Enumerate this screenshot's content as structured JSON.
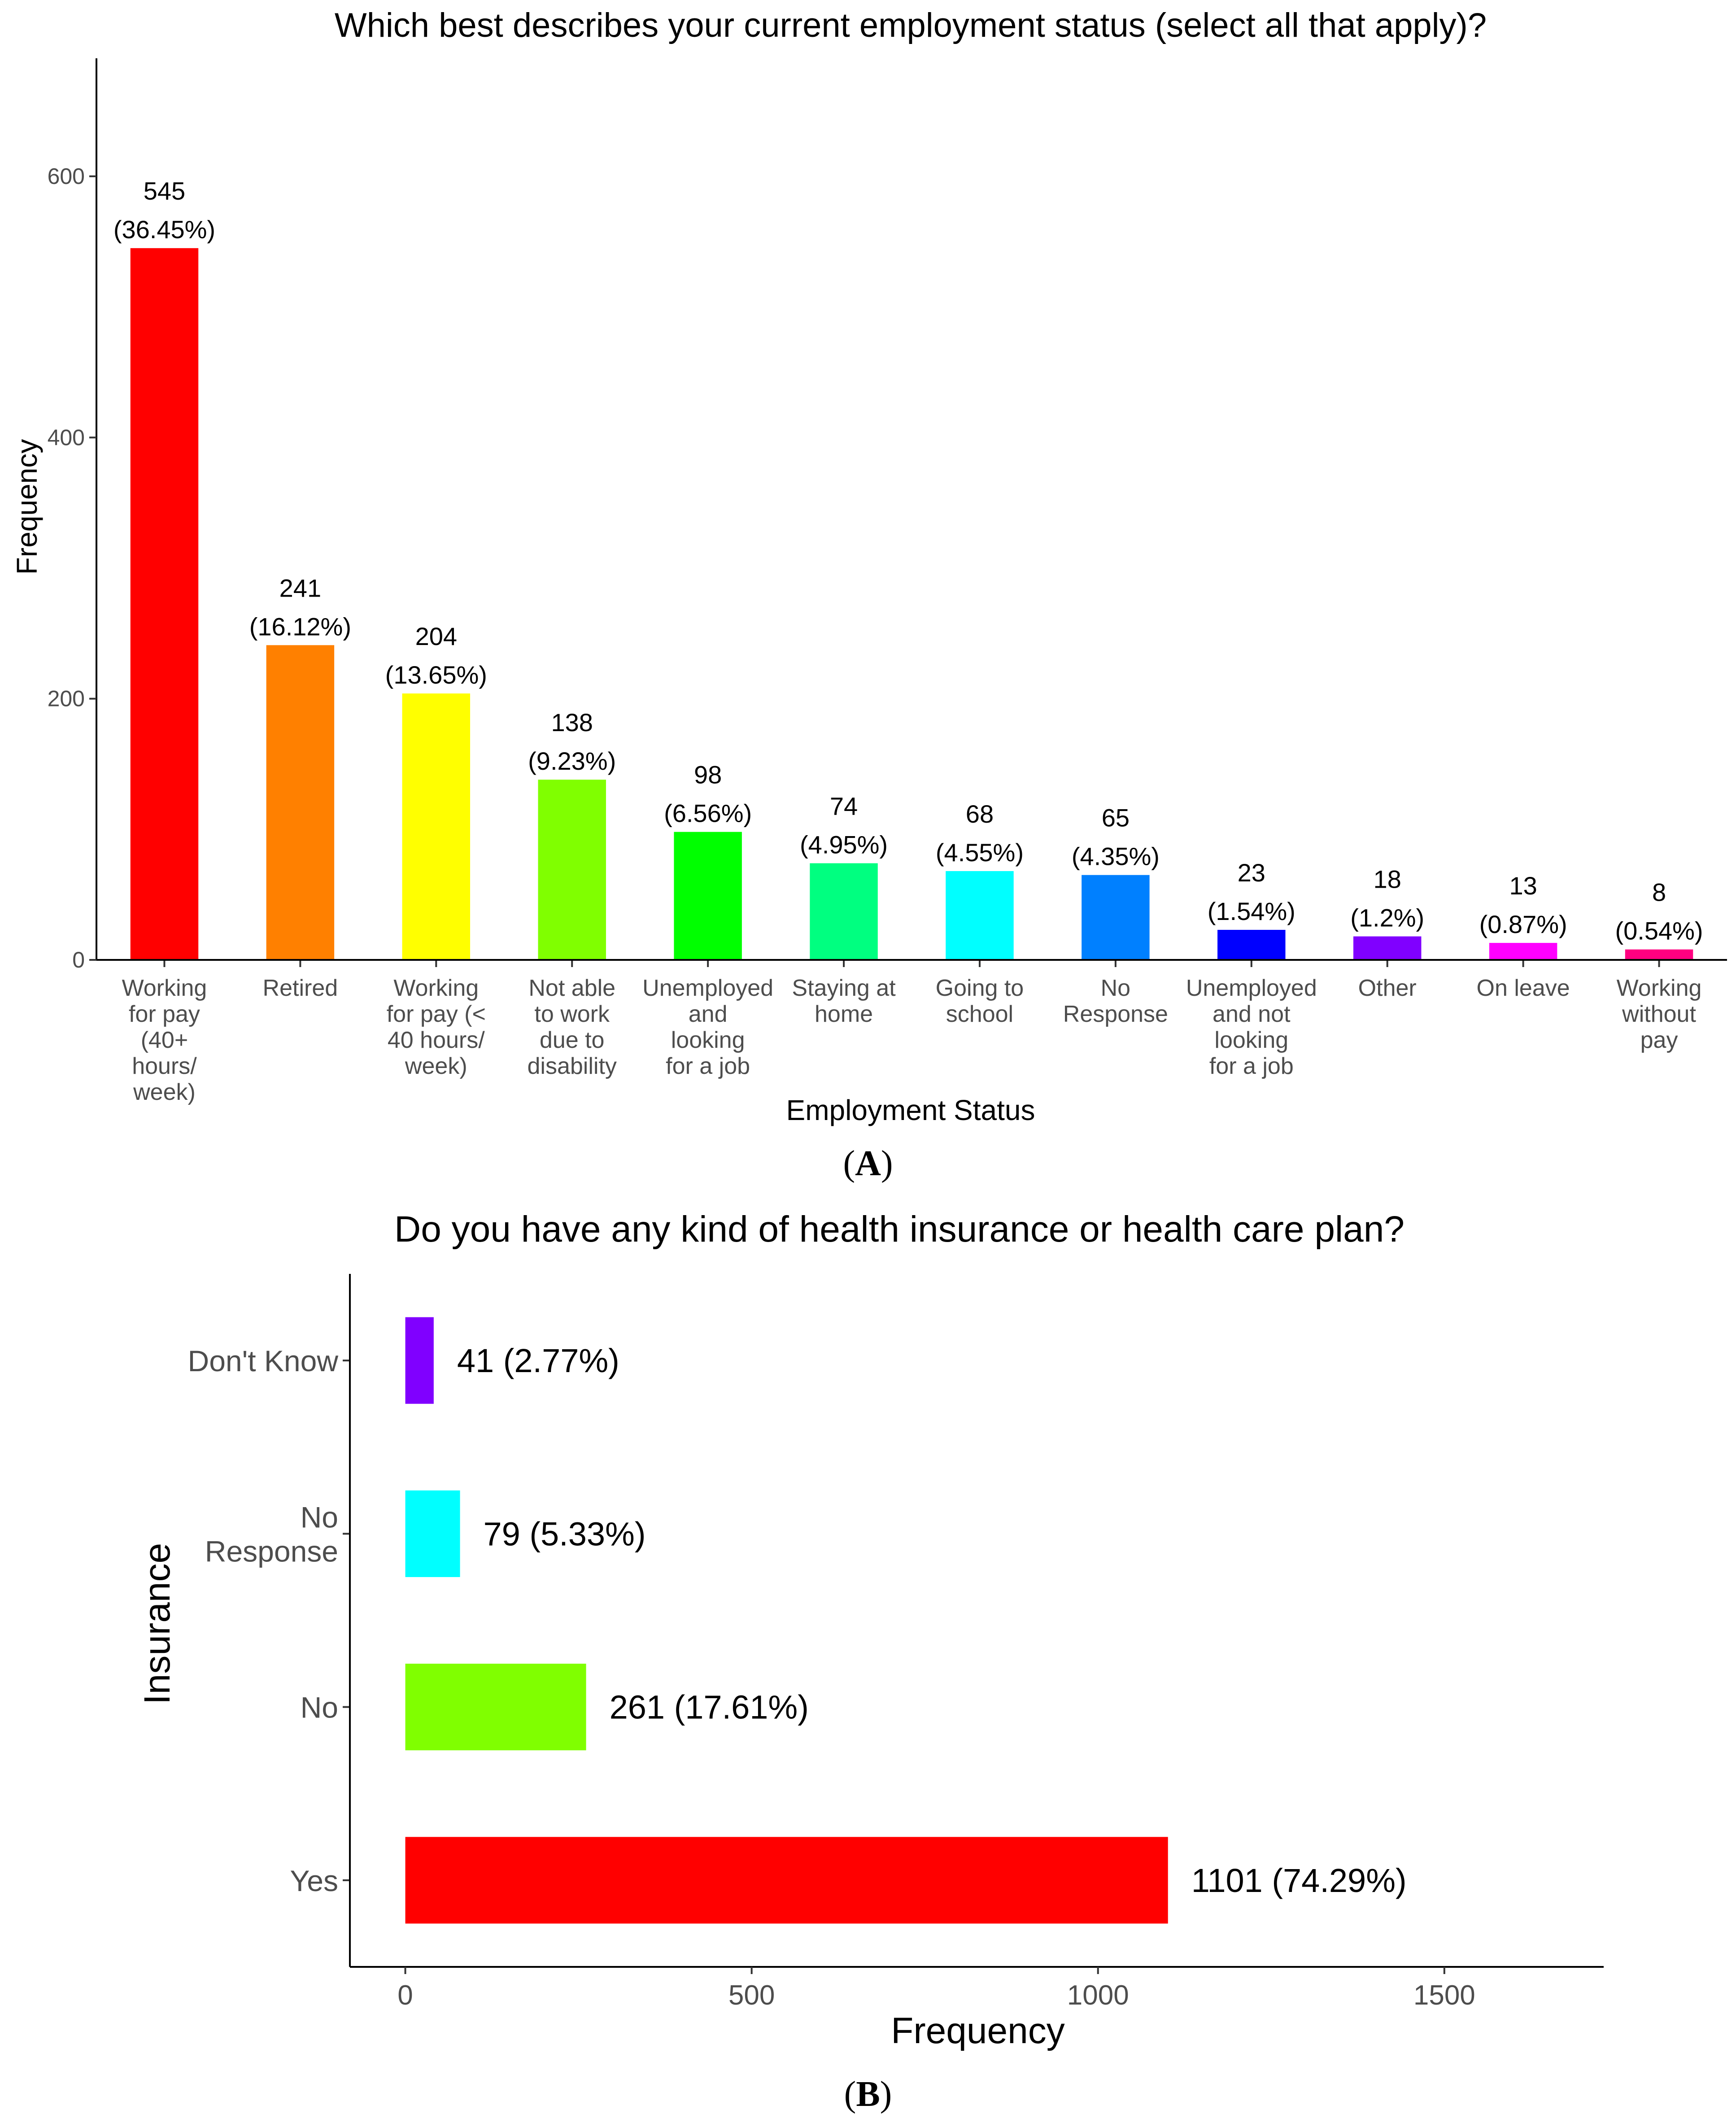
{
  "chart_data": [
    {
      "type": "bar",
      "panel_label": "A",
      "title": "Which best describes your current employment status (select all that apply)?",
      "xlabel": "Employment Status",
      "ylabel": "Frequency",
      "ylim": [
        0,
        680
      ],
      "yticks": [
        0,
        200,
        400,
        600
      ],
      "grid": false,
      "categories": [
        [
          "Working",
          "for pay",
          "(40+",
          "hours/",
          "week)"
        ],
        [
          "Retired"
        ],
        [
          "Working",
          "for pay (<",
          "40 hours/",
          "week)"
        ],
        [
          "Not able",
          "to work",
          "due to",
          "disability"
        ],
        [
          "Unemployed",
          "and",
          "looking",
          "for a job"
        ],
        [
          "Staying at",
          "home"
        ],
        [
          "Going to",
          "school"
        ],
        [
          "No",
          "Response"
        ],
        [
          "Unemployed",
          "and not",
          "looking",
          "for a job"
        ],
        [
          "Other"
        ],
        [
          "On leave"
        ],
        [
          "Working",
          "without",
          "pay"
        ]
      ],
      "values": [
        545,
        241,
        204,
        138,
        98,
        74,
        68,
        65,
        23,
        18,
        13,
        8
      ],
      "percent_labels": [
        "(36.45%)",
        "(16.12%)",
        "(13.65%)",
        "(9.23%)",
        "(6.56%)",
        "(4.95%)",
        "(4.55%)",
        "(4.35%)",
        "(1.54%)",
        "(1.2%)",
        "(0.87%)",
        "(0.54%)"
      ],
      "colors": [
        "#ff0000",
        "#ff8000",
        "#ffff00",
        "#80ff00",
        "#00ff00",
        "#00ff80",
        "#00ffff",
        "#0080ff",
        "#0000ff",
        "#8000ff",
        "#ff00ff",
        "#ff0080"
      ]
    },
    {
      "type": "bar",
      "orientation": "horizontal",
      "panel_label": "B",
      "title": "Do you have any kind of health insurance or health care plan?",
      "xlabel": "Frequency",
      "ylabel": "Insurance",
      "xlim": [
        -80,
        1730
      ],
      "xticks": [
        0,
        500,
        1000,
        1500
      ],
      "grid": false,
      "categories": [
        [
          "Yes"
        ],
        [
          "No"
        ],
        [
          "No",
          "Response"
        ],
        [
          "Don't Know"
        ]
      ],
      "values": [
        1101,
        261,
        79,
        41
      ],
      "value_labels": [
        "1101 (74.29%)",
        "261 (17.61%)",
        "79 (5.33%)",
        "41 (2.77%)"
      ],
      "colors": [
        "#ff0000",
        "#80ff00",
        "#00ffff",
        "#8000ff"
      ]
    }
  ]
}
